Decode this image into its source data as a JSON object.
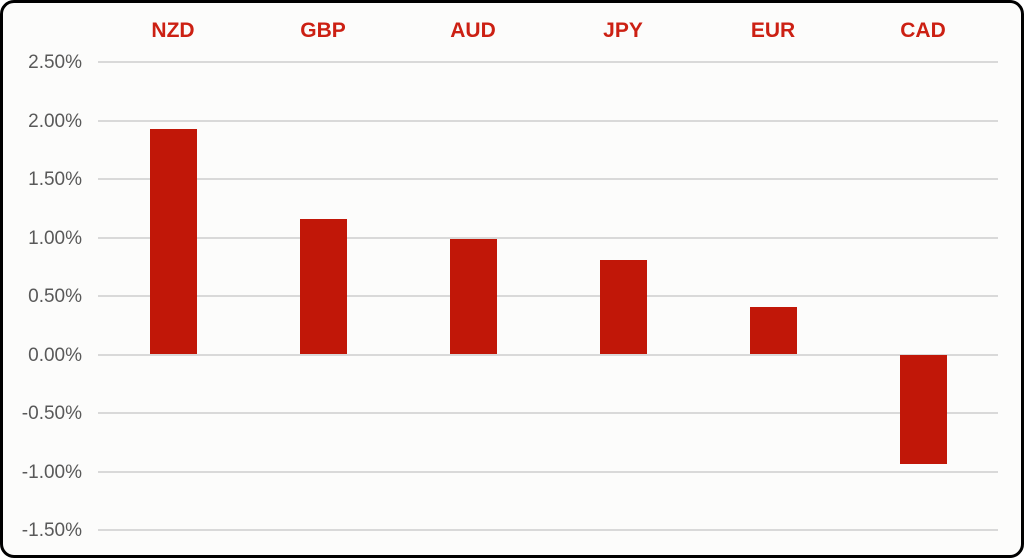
{
  "chart_data": {
    "type": "bar",
    "title": "",
    "xlabel": "",
    "ylabel": "",
    "categories": [
      "NZD",
      "GBP",
      "AUD",
      "JPY",
      "EUR",
      "CAD"
    ],
    "values": [
      1.93,
      1.16,
      0.99,
      0.81,
      0.41,
      -0.94
    ],
    "value_unit": "%",
    "ylim": [
      -1.5,
      2.5
    ],
    "ytick_step": 0.5,
    "ytick_labels": [
      "2.50%",
      "2.00%",
      "1.50%",
      "1.00%",
      "0.50%",
      "0.00%",
      "-0.50%",
      "-1.00%",
      "-1.50%"
    ],
    "grid": true,
    "legend": "none",
    "colors": {
      "bar": "#c11708",
      "category_label": "#cc2013",
      "tick_label": "#595959",
      "gridline": "#d9d9d9",
      "background": "#fcfcfb",
      "frame_border": "#000000"
    }
  },
  "layout_note": "currency performance bar chart, positive bars above zero line, CAD negative"
}
